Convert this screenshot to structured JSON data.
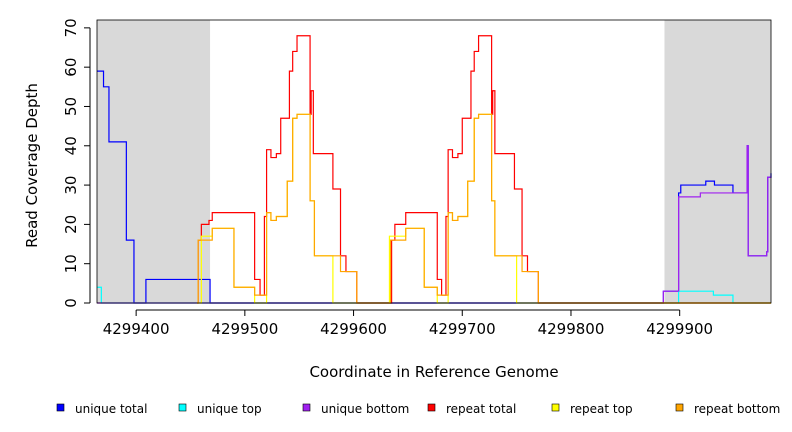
{
  "chart_data": {
    "type": "line",
    "title": "",
    "xlabel": "Coordinate in Reference Genome",
    "ylabel": "Read Coverage Depth",
    "xlim": [
      4299364,
      4299984
    ],
    "ylim": [
      0,
      72
    ],
    "x_ticks": [
      4299400,
      4299500,
      4299600,
      4299700,
      4299800,
      4299900
    ],
    "x_tick_labels": [
      "4299400",
      "4299500",
      "4299600",
      "4299700",
      "4299800",
      "4299900"
    ],
    "y_ticks": [
      0,
      10,
      20,
      30,
      40,
      50,
      60,
      70
    ],
    "y_tick_labels": [
      "0",
      "10",
      "20",
      "30",
      "40",
      "50",
      "60",
      "70"
    ],
    "grid": false,
    "legend_position": "bottom",
    "shaded_regions": [
      {
        "x0": 4299364,
        "x1": 4299468,
        "color": "#d9d9d9"
      },
      {
        "x0": 4299886,
        "x1": 4299984,
        "color": "#d9d9d9"
      }
    ],
    "series": [
      {
        "name": "unique total",
        "color": "#0000ff",
        "steps": [
          [
            4299364,
            59
          ],
          [
            4299370,
            55
          ],
          [
            4299375,
            41
          ],
          [
            4299391,
            16
          ],
          [
            4299398,
            0
          ],
          [
            4299409,
            6
          ],
          [
            4299468,
            0
          ],
          [
            4299885,
            3
          ],
          [
            4299899,
            28
          ],
          [
            4299901,
            30
          ],
          [
            4299924,
            31
          ],
          [
            4299932,
            30
          ],
          [
            4299949,
            28
          ],
          [
            4299962,
            40
          ],
          [
            4299963,
            12
          ],
          [
            4299980,
            13
          ],
          [
            4299981,
            32
          ],
          [
            4299984,
            33
          ]
        ]
      },
      {
        "name": "unique top",
        "color": "#00ffff",
        "steps": [
          [
            4299364,
            4
          ],
          [
            4299368,
            0
          ],
          [
            4299468,
            0
          ],
          [
            4299885,
            0
          ],
          [
            4299899,
            3
          ],
          [
            4299931,
            2
          ],
          [
            4299949,
            0
          ]
        ]
      },
      {
        "name": "unique bottom",
        "color": "#a020f0",
        "steps": [
          [
            4299364,
            0
          ],
          [
            4299885,
            3
          ],
          [
            4299899,
            27
          ],
          [
            4299919,
            28
          ],
          [
            4299949,
            28
          ],
          [
            4299962,
            40
          ],
          [
            4299963,
            12
          ],
          [
            4299980,
            13
          ],
          [
            4299981,
            32
          ]
        ]
      },
      {
        "name": "repeat total",
        "color": "#ff0000",
        "steps": [
          [
            4299456,
            0
          ],
          [
            4299457,
            16
          ],
          [
            4299460,
            20
          ],
          [
            4299467,
            21
          ],
          [
            4299470,
            23
          ],
          [
            4299509,
            6
          ],
          [
            4299514,
            2
          ],
          [
            4299518,
            22
          ],
          [
            4299520,
            39
          ],
          [
            4299524,
            37
          ],
          [
            4299529,
            38
          ],
          [
            4299533,
            47
          ],
          [
            4299541,
            59
          ],
          [
            4299544,
            64
          ],
          [
            4299548,
            68
          ],
          [
            4299560,
            48
          ],
          [
            4299561,
            54
          ],
          [
            4299563,
            38
          ],
          [
            4299581,
            29
          ],
          [
            4299588,
            12
          ],
          [
            4299593,
            8
          ],
          [
            4299603,
            0
          ],
          [
            4299634,
            0
          ],
          [
            4299635,
            16
          ],
          [
            4299638,
            20
          ],
          [
            4299648,
            23
          ],
          [
            4299677,
            6
          ],
          [
            4299681,
            2
          ],
          [
            4299685,
            22
          ],
          [
            4299687,
            39
          ],
          [
            4299691,
            37
          ],
          [
            4299696,
            38
          ],
          [
            4299700,
            47
          ],
          [
            4299708,
            59
          ],
          [
            4299711,
            64
          ],
          [
            4299715,
            68
          ],
          [
            4299727,
            48
          ],
          [
            4299728,
            54
          ],
          [
            4299730,
            38
          ],
          [
            4299748,
            29
          ],
          [
            4299755,
            12
          ],
          [
            4299760,
            8
          ],
          [
            4299770,
            0
          ]
        ]
      },
      {
        "name": "repeat top",
        "color": "#ffff00",
        "steps": [
          [
            4299456,
            0
          ],
          [
            4299460,
            17
          ],
          [
            4299470,
            19
          ],
          [
            4299490,
            4
          ],
          [
            4299509,
            0
          ],
          [
            4299520,
            23
          ],
          [
            4299524,
            21
          ],
          [
            4299529,
            22
          ],
          [
            4299539,
            31
          ],
          [
            4299544,
            47
          ],
          [
            4299548,
            48
          ],
          [
            4299560,
            26
          ],
          [
            4299564,
            12
          ],
          [
            4299581,
            0
          ],
          [
            4299628,
            0
          ],
          [
            4299633,
            17
          ],
          [
            4299648,
            19
          ],
          [
            4299665,
            4
          ],
          [
            4299677,
            0
          ],
          [
            4299687,
            23
          ],
          [
            4299691,
            21
          ],
          [
            4299696,
            22
          ],
          [
            4299705,
            31
          ],
          [
            4299711,
            47
          ],
          [
            4299715,
            48
          ],
          [
            4299727,
            26
          ],
          [
            4299730,
            12
          ],
          [
            4299750,
            0
          ]
        ]
      },
      {
        "name": "repeat bottom",
        "color": "#ffa500",
        "steps": [
          [
            4299456,
            0
          ],
          [
            4299457,
            16
          ],
          [
            4299470,
            19
          ],
          [
            4299490,
            4
          ],
          [
            4299509,
            2
          ],
          [
            4299520,
            23
          ],
          [
            4299524,
            21
          ],
          [
            4299529,
            22
          ],
          [
            4299539,
            31
          ],
          [
            4299544,
            47
          ],
          [
            4299548,
            48
          ],
          [
            4299560,
            26
          ],
          [
            4299564,
            12
          ],
          [
            4299588,
            8
          ],
          [
            4299603,
            0
          ],
          [
            4299634,
            16
          ],
          [
            4299648,
            19
          ],
          [
            4299665,
            4
          ],
          [
            4299677,
            2
          ],
          [
            4299687,
            23
          ],
          [
            4299691,
            21
          ],
          [
            4299696,
            22
          ],
          [
            4299705,
            31
          ],
          [
            4299711,
            47
          ],
          [
            4299715,
            48
          ],
          [
            4299727,
            26
          ],
          [
            4299730,
            12
          ],
          [
            4299755,
            8
          ],
          [
            4299770,
            0
          ]
        ]
      }
    ]
  }
}
